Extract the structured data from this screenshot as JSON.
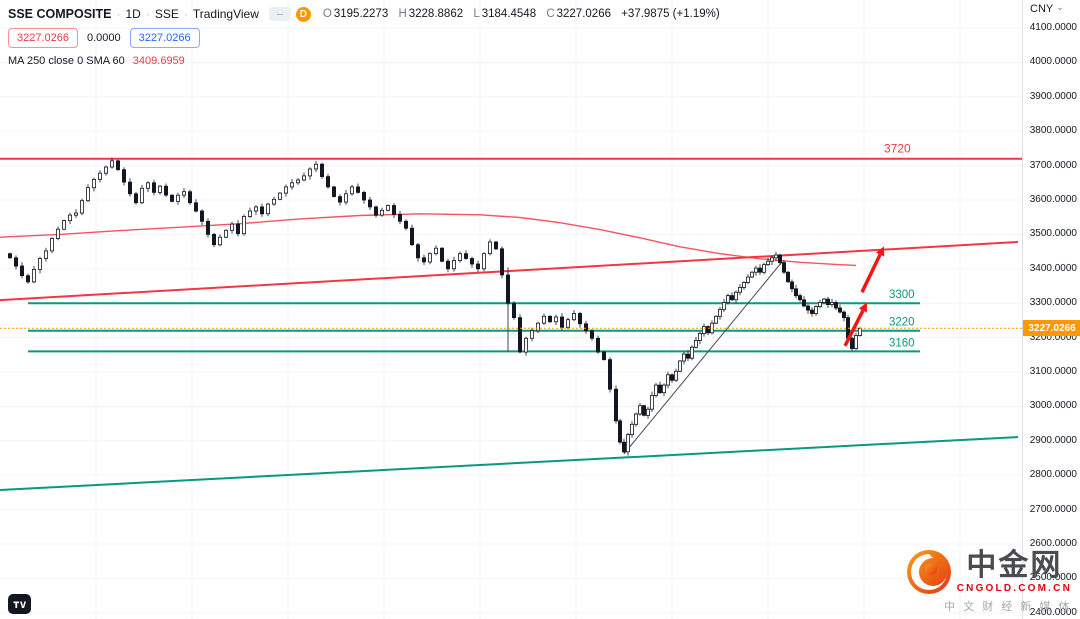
{
  "header": {
    "symbol": "SSE COMPOSITE",
    "separator": "·",
    "timeframe": "1D",
    "exchange": "SSE",
    "source": "TradingView",
    "timeframe_badge": "D",
    "ohlc": {
      "o_label": "O",
      "o": "3195.2273",
      "h_label": "H",
      "h": "3228.8862",
      "l_label": "L",
      "l": "3184.4548",
      "c_label": "C",
      "c": "3227.0266",
      "change": "+37.9875 (+1.19%)"
    },
    "price_row": {
      "bid_box": "3227.0266",
      "spread": "0.0000",
      "ask_box": "3227.0266"
    },
    "indicator_row": {
      "label": "MA 250 close 0 SMA 60",
      "value": "3409.6959"
    }
  },
  "icons": {
    "legend_dash": "─",
    "chevron_down": "⌄"
  },
  "axis": {
    "currency": "CNY",
    "labels": [
      "4100.0000",
      "4000.0000",
      "3900.0000",
      "3800.0000",
      "3700.0000",
      "3600.0000",
      "3500.0000",
      "3400.0000",
      "3300.0000",
      "3200.0000",
      "3100.0000",
      "3000.0000",
      "2900.0000",
      "2800.0000",
      "2700.0000",
      "2600.0000",
      "2500.0000",
      "2400.0000"
    ],
    "price_tag": "3227.0266"
  },
  "watermark": {
    "brand": "中金网",
    "site": "CNGOLD.COM.CN",
    "tagline": "中 文 财 经 新 媒 体"
  },
  "chart_data": {
    "type": "candlestick",
    "title": "SSE COMPOSITE · 1D · SSE",
    "ylim": [
      2400,
      4100
    ],
    "y_tick_step": 100,
    "current_price": 3227.0266,
    "price_color": "#ff9800",
    "levels": {
      "resistance": [
        3720
      ],
      "support": [
        3300,
        3220,
        3160
      ]
    },
    "level_colors": {
      "resistance": "#f23645",
      "support": "#089981"
    },
    "trendlines": [
      {
        "name": "red-ascending-trendline",
        "color": "#f23645",
        "points": [
          [
            0,
            3309
          ],
          [
            1018,
            3478
          ]
        ]
      },
      {
        "name": "green-ascending-trendline",
        "color": "#089981",
        "points": [
          [
            0,
            2757
          ],
          [
            1018,
            2911
          ]
        ]
      }
    ],
    "ma": {
      "label": "SMA",
      "value": 3409.6959,
      "color": "#f23645",
      "points": [
        [
          0,
          3492
        ],
        [
          60,
          3500
        ],
        [
          120,
          3511
        ],
        [
          180,
          3521
        ],
        [
          240,
          3531
        ],
        [
          300,
          3545
        ],
        [
          360,
          3555
        ],
        [
          420,
          3560
        ],
        [
          480,
          3557
        ],
        [
          520,
          3549
        ],
        [
          560,
          3534
        ],
        [
          600,
          3514
        ],
        [
          640,
          3490
        ],
        [
          680,
          3464
        ],
        [
          720,
          3444
        ],
        [
          760,
          3429
        ],
        [
          800,
          3419
        ],
        [
          840,
          3412
        ],
        [
          856,
          3410
        ]
      ]
    },
    "close_path": [
      [
        10,
        3432
      ],
      [
        16,
        3408
      ],
      [
        22,
        3380
      ],
      [
        28,
        3362
      ],
      [
        34,
        3398
      ],
      [
        40,
        3430
      ],
      [
        46,
        3452
      ],
      [
        52,
        3488
      ],
      [
        58,
        3515
      ],
      [
        64,
        3540
      ],
      [
        70,
        3556
      ],
      [
        76,
        3562
      ],
      [
        82,
        3598
      ],
      [
        88,
        3636
      ],
      [
        94,
        3660
      ],
      [
        100,
        3678
      ],
      [
        106,
        3696
      ],
      [
        112,
        3714
      ],
      [
        118,
        3688
      ],
      [
        124,
        3652
      ],
      [
        130,
        3618
      ],
      [
        136,
        3592
      ],
      [
        142,
        3634
      ],
      [
        148,
        3650
      ],
      [
        154,
        3622
      ],
      [
        160,
        3640
      ],
      [
        166,
        3614
      ],
      [
        172,
        3596
      ],
      [
        178,
        3614
      ],
      [
        184,
        3624
      ],
      [
        190,
        3592
      ],
      [
        196,
        3568
      ],
      [
        202,
        3538
      ],
      [
        208,
        3500
      ],
      [
        214,
        3470
      ],
      [
        220,
        3492
      ],
      [
        226,
        3512
      ],
      [
        232,
        3530
      ],
      [
        238,
        3502
      ],
      [
        244,
        3552
      ],
      [
        250,
        3568
      ],
      [
        256,
        3580
      ],
      [
        262,
        3560
      ],
      [
        268,
        3588
      ],
      [
        274,
        3602
      ],
      [
        280,
        3620
      ],
      [
        286,
        3638
      ],
      [
        292,
        3650
      ],
      [
        298,
        3658
      ],
      [
        304,
        3670
      ],
      [
        310,
        3690
      ],
      [
        316,
        3704
      ],
      [
        322,
        3668
      ],
      [
        328,
        3638
      ],
      [
        334,
        3610
      ],
      [
        340,
        3594
      ],
      [
        346,
        3618
      ],
      [
        352,
        3638
      ],
      [
        358,
        3622
      ],
      [
        364,
        3600
      ],
      [
        370,
        3580
      ],
      [
        376,
        3556
      ],
      [
        382,
        3570
      ],
      [
        388,
        3584
      ],
      [
        394,
        3558
      ],
      [
        400,
        3538
      ],
      [
        406,
        3518
      ],
      [
        412,
        3470
      ],
      [
        418,
        3432
      ],
      [
        424,
        3420
      ],
      [
        430,
        3444
      ],
      [
        436,
        3460
      ],
      [
        442,
        3422
      ],
      [
        448,
        3400
      ],
      [
        454,
        3424
      ],
      [
        460,
        3444
      ],
      [
        466,
        3430
      ],
      [
        472,
        3414
      ],
      [
        478,
        3400
      ],
      [
        484,
        3444
      ],
      [
        490,
        3478
      ],
      [
        496,
        3458
      ],
      [
        502,
        3382
      ],
      [
        508,
        3300
      ],
      [
        514,
        3258
      ],
      [
        520,
        3158
      ],
      [
        526,
        3198
      ],
      [
        532,
        3220
      ],
      [
        538,
        3242
      ],
      [
        544,
        3262
      ],
      [
        550,
        3246
      ],
      [
        556,
        3260
      ],
      [
        562,
        3230
      ],
      [
        568,
        3252
      ],
      [
        574,
        3270
      ],
      [
        580,
        3240
      ],
      [
        586,
        3220
      ],
      [
        592,
        3198
      ],
      [
        598,
        3158
      ],
      [
        604,
        3136
      ],
      [
        610,
        3050
      ],
      [
        616,
        2958
      ],
      [
        620,
        2896
      ],
      [
        624,
        2868
      ],
      [
        628,
        2918
      ],
      [
        632,
        2948
      ],
      [
        636,
        2978
      ],
      [
        640,
        3002
      ],
      [
        644,
        2974
      ],
      [
        648,
        2992
      ],
      [
        652,
        3032
      ],
      [
        656,
        3062
      ],
      [
        660,
        3040
      ],
      [
        664,
        3062
      ],
      [
        668,
        3092
      ],
      [
        672,
        3076
      ],
      [
        676,
        3102
      ],
      [
        680,
        3132
      ],
      [
        684,
        3152
      ],
      [
        688,
        3140
      ],
      [
        692,
        3172
      ],
      [
        696,
        3192
      ],
      [
        700,
        3212
      ],
      [
        704,
        3232
      ],
      [
        708,
        3214
      ],
      [
        712,
        3242
      ],
      [
        716,
        3262
      ],
      [
        720,
        3282
      ],
      [
        724,
        3302
      ],
      [
        728,
        3322
      ],
      [
        732,
        3310
      ],
      [
        736,
        3332
      ],
      [
        740,
        3346
      ],
      [
        744,
        3360
      ],
      [
        748,
        3376
      ],
      [
        752,
        3390
      ],
      [
        756,
        3402
      ],
      [
        760,
        3390
      ],
      [
        764,
        3412
      ],
      [
        768,
        3422
      ],
      [
        772,
        3432
      ],
      [
        776,
        3440
      ],
      [
        780,
        3418
      ],
      [
        784,
        3390
      ],
      [
        788,
        3362
      ],
      [
        792,
        3342
      ],
      [
        796,
        3322
      ],
      [
        800,
        3310
      ],
      [
        804,
        3292
      ],
      [
        808,
        3280
      ],
      [
        812,
        3270
      ],
      [
        816,
        3290
      ],
      [
        820,
        3302
      ],
      [
        824,
        3312
      ],
      [
        828,
        3296
      ],
      [
        832,
        3302
      ],
      [
        836,
        3286
      ],
      [
        840,
        3274
      ],
      [
        844,
        3258
      ],
      [
        848,
        3198
      ],
      [
        852,
        3168
      ],
      [
        856,
        3206
      ],
      [
        860,
        3227.03
      ]
    ],
    "drawings": {
      "color": "#f51414",
      "arrows": [
        {
          "from": [
            862,
            3332
          ],
          "to": [
            884,
            3465
          ]
        },
        {
          "from": [
            845,
            3176
          ],
          "to": [
            867,
            3302
          ]
        }
      ],
      "lines": [
        {
          "from": [
            624,
            2862
          ],
          "to": [
            782,
            3420
          ]
        },
        {
          "from": [
            508,
            3404
          ],
          "to": [
            508,
            3158
          ]
        }
      ]
    },
    "candle_style": {
      "up_fill": "#ffffff",
      "down_fill": "#131722",
      "border": "#131722"
    }
  }
}
